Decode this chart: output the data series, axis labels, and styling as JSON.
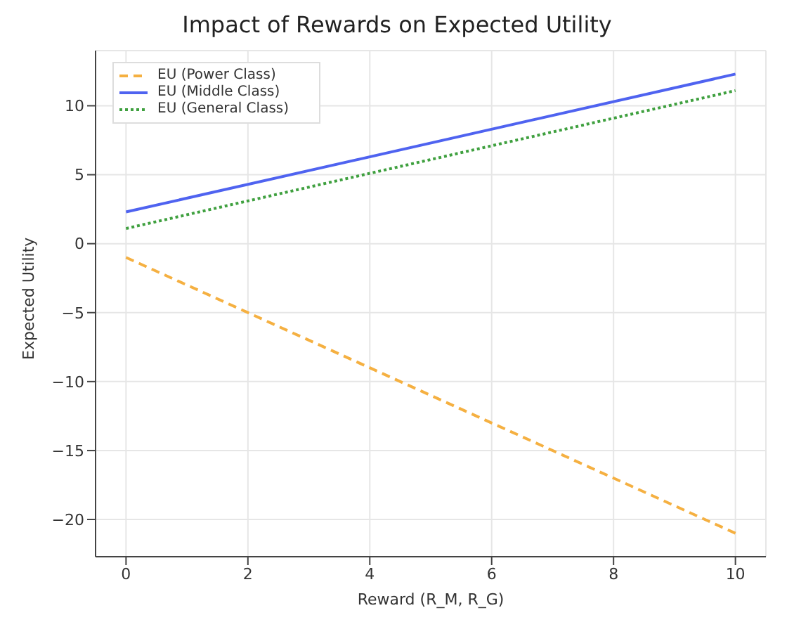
{
  "chart_data": {
    "type": "line",
    "title": "Impact of Rewards on Expected Utility",
    "xlabel": "Reward (R_M, R_G)",
    "ylabel": "Expected Utility",
    "x": [
      0,
      10
    ],
    "series": [
      {
        "name": "EU (Power Class)",
        "color": "#f5b041",
        "values": [
          -1,
          -21
        ],
        "line_style": "dashed"
      },
      {
        "name": "EU (Middle Class)",
        "color": "#4f63f0",
        "values": [
          2.3,
          12.3
        ],
        "line_style": "solid"
      },
      {
        "name": "EU (General Class)",
        "color": "#3fa03f",
        "values": [
          1.1,
          11.1
        ],
        "line_style": "dotted"
      }
    ],
    "xlim": [
      -0.5,
      10.5
    ],
    "xticks": [
      0,
      2,
      4,
      6,
      8,
      10
    ],
    "ylim": [
      -22.7,
      14
    ],
    "yticks": [
      -20,
      -15,
      -10,
      -5,
      0,
      5,
      10
    ],
    "grid": true,
    "legend": "top left",
    "marker": "none"
  }
}
